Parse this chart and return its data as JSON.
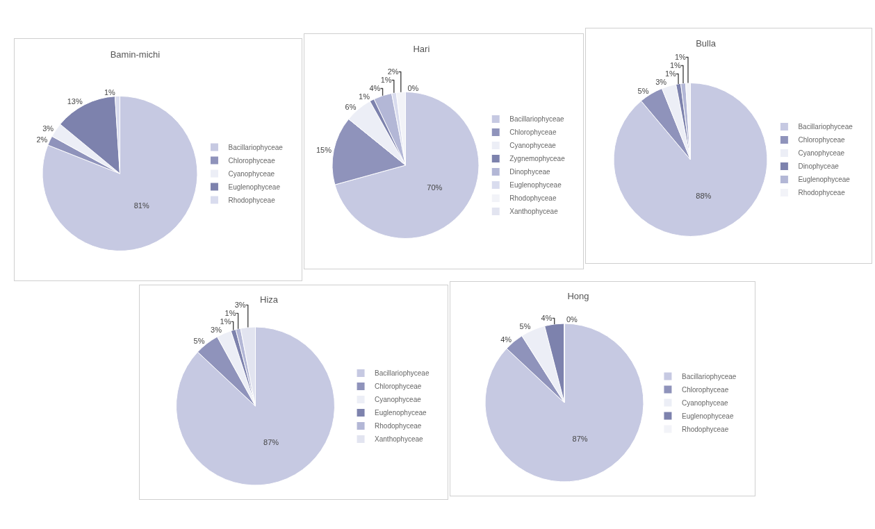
{
  "chart_data": [
    {
      "type": "pie",
      "title": "Bamin-michi",
      "categories": [
        "Bacillariophyceae",
        "Chlorophyceae",
        "Cyanophyceae",
        "Euglenophyceae",
        "Rhodophyceae"
      ],
      "values": [
        81,
        2,
        3,
        13,
        1
      ],
      "value_labels": [
        "81%",
        "2%",
        "3%",
        "13%",
        "1%"
      ],
      "colors": [
        "#c6c9e2",
        "#8f93bb",
        "#eceef6",
        "#7d82ad",
        "#d9dcee"
      ],
      "legend": "right"
    },
    {
      "type": "pie",
      "title": "Hari",
      "categories": [
        "Bacillariophyceae",
        "Chlorophyceae",
        "Cyanophyceae",
        "Zygnemophyceae",
        "Dinophyceae",
        "Euglenophyceae",
        "Rhodophyceae",
        "Xanthophyceae"
      ],
      "values": [
        70,
        15,
        6,
        1,
        4,
        1,
        2,
        0
      ],
      "value_labels": [
        "70%",
        "15%",
        "6%",
        "1%",
        "4%",
        "1%",
        "2%",
        "0%"
      ],
      "colors": [
        "#c6c9e2",
        "#8f93bb",
        "#eceef6",
        "#7d82ad",
        "#b3b7d6",
        "#d9dcee",
        "#f2f3f8",
        "#e2e4f0"
      ],
      "legend": "right"
    },
    {
      "type": "pie",
      "title": "Bulla",
      "categories": [
        "Bacillariophyceae",
        "Chlorophyceae",
        "Cyanophyceae",
        "Dinophyceae",
        "Euglenophyceae",
        "Rhodophyceae"
      ],
      "values": [
        88,
        5,
        3,
        1,
        1,
        1
      ],
      "value_labels": [
        "88%",
        "5%",
        "3%",
        "1%",
        "1%",
        "1%"
      ],
      "colors": [
        "#c6c9e2",
        "#8f93bb",
        "#eceef6",
        "#7d82ad",
        "#b3b7d6",
        "#f2f3f8"
      ],
      "legend": "right"
    },
    {
      "type": "pie",
      "title": "Hiza",
      "categories": [
        "Bacillariophyceae",
        "Chlorophyceae",
        "Cyanophyceae",
        "Euglenophyceae",
        "Rhodophyceae",
        "Xanthophyceae"
      ],
      "values": [
        87,
        5,
        3,
        1,
        1,
        3
      ],
      "value_labels": [
        "87%",
        "5%",
        "3%",
        "1%",
        "1%",
        "3%"
      ],
      "colors": [
        "#c6c9e2",
        "#8f93bb",
        "#eceef6",
        "#7d82ad",
        "#b3b7d6",
        "#e2e4f0"
      ],
      "legend": "right"
    },
    {
      "type": "pie",
      "title": "Hong",
      "categories": [
        "Bacillariophyceae",
        "Chlorophyceae",
        "Cyanophyceae",
        "Euglenophyceae",
        "Rhodophyceae"
      ],
      "values": [
        87,
        4,
        5,
        4,
        0
      ],
      "value_labels": [
        "87%",
        "4%",
        "5%",
        "4%",
        "0%"
      ],
      "colors": [
        "#c6c9e2",
        "#8f93bb",
        "#eceef6",
        "#7d82ad",
        "#f2f3f8"
      ],
      "legend": "right"
    }
  ]
}
